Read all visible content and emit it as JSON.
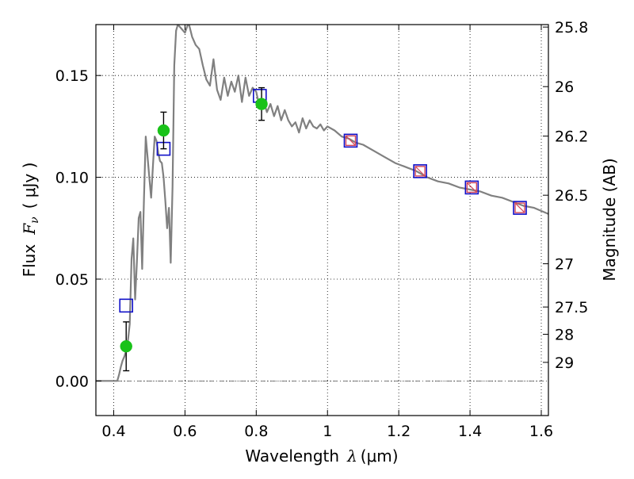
{
  "chart_data": {
    "type": "scatter",
    "xlabel": {
      "text": "Wavelength",
      "symbol": "λ",
      "unit": "(μm)"
    },
    "ylabel": {
      "text": "Flux",
      "symbol": "F",
      "sub": "ν",
      "unit": "( μJy )"
    },
    "y2label": "Magnitude (AB)",
    "xlim": [
      0.35,
      1.62
    ],
    "ylim": [
      -0.017,
      0.175
    ],
    "x_ticks": [
      0.4,
      0.6,
      0.8,
      1.0,
      1.2,
      1.4,
      1.6
    ],
    "x_tick_labels": [
      "0.4",
      "0.6",
      "0.8",
      "1",
      "1.2",
      "1.4",
      "1.6"
    ],
    "y_ticks": [
      0.0,
      0.05,
      0.1,
      0.15
    ],
    "y_tick_labels": [
      "0.00",
      "0.05",
      "0.10",
      "0.15"
    ],
    "y2_ticks": [
      25.8,
      26,
      26.2,
      26.5,
      27,
      27.5,
      28,
      29
    ],
    "y2_tick_labels": [
      "25.8",
      "26",
      "26.2",
      "26.5",
      "27",
      "27.5",
      "28",
      "29"
    ],
    "grid": true,
    "colors": {
      "model": "#808080",
      "observed": "#19c219",
      "model_photometry": "#1010c8",
      "hst_points": "#d4475a",
      "errorbar": "#000000",
      "zero_line": "#555555"
    },
    "series": [
      {
        "style": "model-spectrum-line",
        "x": [
          0.35,
          0.41,
          0.415,
          0.42,
          0.425,
          0.43,
          0.435,
          0.44,
          0.445,
          0.45,
          0.455,
          0.46,
          0.465,
          0.47,
          0.475,
          0.48,
          0.485,
          0.49,
          0.495,
          0.5,
          0.505,
          0.51,
          0.515,
          0.52,
          0.525,
          0.53,
          0.535,
          0.54,
          0.545,
          0.55,
          0.555,
          0.56,
          0.565,
          0.57,
          0.575,
          0.58,
          0.59,
          0.6,
          0.61,
          0.62,
          0.63,
          0.64,
          0.65,
          0.66,
          0.67,
          0.68,
          0.69,
          0.7,
          0.71,
          0.72,
          0.73,
          0.74,
          0.75,
          0.76,
          0.77,
          0.78,
          0.79,
          0.8,
          0.81,
          0.82,
          0.83,
          0.84,
          0.85,
          0.86,
          0.87,
          0.88,
          0.89,
          0.9,
          0.91,
          0.92,
          0.93,
          0.94,
          0.95,
          0.96,
          0.97,
          0.98,
          0.99,
          1.0,
          1.02,
          1.04,
          1.06,
          1.08,
          1.1,
          1.13,
          1.16,
          1.19,
          1.22,
          1.25,
          1.28,
          1.31,
          1.34,
          1.37,
          1.4,
          1.43,
          1.46,
          1.49,
          1.52,
          1.55,
          1.58,
          1.62
        ],
        "y": [
          0.0,
          0.0,
          0.003,
          0.007,
          0.01,
          0.012,
          0.015,
          0.02,
          0.028,
          0.06,
          0.07,
          0.04,
          0.058,
          0.08,
          0.083,
          0.055,
          0.09,
          0.12,
          0.11,
          0.1,
          0.09,
          0.105,
          0.12,
          0.118,
          0.112,
          0.108,
          0.107,
          0.1,
          0.088,
          0.075,
          0.085,
          0.058,
          0.095,
          0.155,
          0.172,
          0.175,
          0.173,
          0.171,
          0.176,
          0.169,
          0.165,
          0.163,
          0.155,
          0.148,
          0.145,
          0.158,
          0.143,
          0.138,
          0.149,
          0.14,
          0.147,
          0.142,
          0.15,
          0.137,
          0.149,
          0.14,
          0.144,
          0.142,
          0.134,
          0.138,
          0.132,
          0.136,
          0.13,
          0.135,
          0.128,
          0.133,
          0.128,
          0.125,
          0.127,
          0.122,
          0.129,
          0.124,
          0.128,
          0.125,
          0.124,
          0.126,
          0.123,
          0.125,
          0.123,
          0.12,
          0.119,
          0.117,
          0.116,
          0.113,
          0.11,
          0.107,
          0.105,
          0.103,
          0.1,
          0.098,
          0.097,
          0.095,
          0.094,
          0.093,
          0.091,
          0.09,
          0.088,
          0.086,
          0.085,
          0.082
        ]
      },
      {
        "style": "observed-photometry-points",
        "x": [
          0.435,
          0.54,
          0.815
        ],
        "y": [
          0.017,
          0.123,
          0.136
        ],
        "yerr": [
          0.012,
          0.009,
          0.008
        ]
      },
      {
        "style": "model-photometry-squares",
        "x": [
          0.435,
          0.54,
          0.81,
          1.065,
          1.26,
          1.405,
          1.54
        ],
        "y": [
          0.037,
          0.114,
          0.14,
          0.118,
          0.103,
          0.095,
          0.085
        ]
      },
      {
        "style": "hst-points-with-cross",
        "x": [
          1.065,
          1.26,
          1.405,
          1.54
        ],
        "y": [
          0.118,
          0.103,
          0.095,
          0.085
        ]
      }
    ]
  }
}
